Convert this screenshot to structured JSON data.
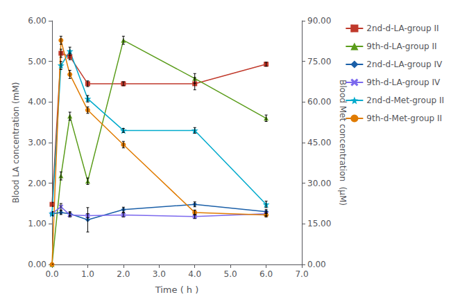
{
  "chart_data": {
    "type": "line",
    "x_label": "Time ( h )",
    "y_label": "Blood LA concentration (mM)",
    "y2_label": "Blood Met concentration  (μM)",
    "x": [
      0.0,
      0.25,
      0.5,
      1.0,
      2.0,
      4.0,
      6.0
    ],
    "series": [
      {
        "name": "2nd-d-LA-group II",
        "color": "#c0392b",
        "marker": "square",
        "values": [
          1.48,
          5.2,
          5.12,
          4.45,
          4.45,
          4.45,
          4.93
        ],
        "yerr": [
          0.05,
          0.1,
          0.08,
          0.07,
          0.05,
          0.15,
          0.05
        ]
      },
      {
        "name": "9th-d-LA-group II",
        "color": "#5a9c1a",
        "marker": "triangle",
        "values": [
          0.0,
          2.18,
          3.65,
          2.05,
          5.52,
          4.58,
          3.6
        ],
        "yerr": [
          0.0,
          0.1,
          0.1,
          0.08,
          0.1,
          0.12,
          0.08
        ]
      },
      {
        "name": "2nd-d-LA-group IV",
        "color": "#1a5fa8",
        "marker": "diamond",
        "values": [
          1.25,
          1.28,
          1.25,
          1.1,
          1.35,
          1.48,
          1.3
        ],
        "yerr": [
          0.05,
          0.05,
          0.05,
          0.3,
          0.06,
          0.06,
          0.05
        ]
      },
      {
        "name": "9th-d-LA-group IV",
        "color": "#7b68ee",
        "marker": "x",
        "values": [
          1.25,
          1.42,
          1.22,
          1.2,
          1.22,
          1.18,
          1.25
        ],
        "yerr": [
          0.05,
          0.08,
          0.05,
          0.05,
          0.05,
          0.05,
          0.05
        ]
      },
      {
        "name": "2nd-d-Met-group II",
        "color": "#00aacc",
        "marker": "star",
        "values": [
          1.25,
          4.9,
          5.25,
          4.08,
          3.3,
          3.3,
          1.48
        ],
        "yerr": [
          0.05,
          0.1,
          0.1,
          0.08,
          0.05,
          0.07,
          0.08
        ]
      },
      {
        "name": "9th-d-Met-group II",
        "color": "#e07b00",
        "marker": "circle",
        "values": [
          0.0,
          5.52,
          4.68,
          3.8,
          2.95,
          1.28,
          1.22
        ],
        "yerr": [
          0.0,
          0.1,
          0.1,
          0.08,
          0.08,
          0.06,
          0.05
        ]
      }
    ],
    "xlim": [
      0.0,
      7.0
    ],
    "xticks": [
      {
        "value": 0.0,
        "label": "0.0"
      },
      {
        "value": 1.0,
        "label": "1.0"
      },
      {
        "value": 2.0,
        "label": "2.0"
      },
      {
        "value": 3.0,
        "label": "3.0"
      },
      {
        "value": 4.0,
        "label": "4.0"
      },
      {
        "value": 5.0,
        "label": "5.0"
      },
      {
        "value": 6.0,
        "label": "6.0"
      },
      {
        "value": 7.0,
        "label": "7.0"
      }
    ],
    "ylim": [
      0.0,
      6.0
    ],
    "yticks": [
      {
        "value": 0.0,
        "label": "0.00"
      },
      {
        "value": 1.0,
        "label": "1.00"
      },
      {
        "value": 2.0,
        "label": "2.00"
      },
      {
        "value": 3.0,
        "label": "3.00"
      },
      {
        "value": 4.0,
        "label": "4.00"
      },
      {
        "value": 5.0,
        "label": "5.00"
      },
      {
        "value": 6.0,
        "label": "6.00"
      }
    ],
    "y2lim": [
      0.0,
      90.0
    ],
    "y2ticks": [
      {
        "value": 0.0,
        "label": "0.00"
      },
      {
        "value": 15.0,
        "label": "15.00"
      },
      {
        "value": 30.0,
        "label": "30.00"
      },
      {
        "value": 45.0,
        "label": "45.00"
      },
      {
        "value": 60.0,
        "label": "60.00"
      },
      {
        "value": 75.0,
        "label": "75.00"
      },
      {
        "value": 90.0,
        "label": "90.00"
      }
    ],
    "grid": false,
    "legend": "right"
  }
}
